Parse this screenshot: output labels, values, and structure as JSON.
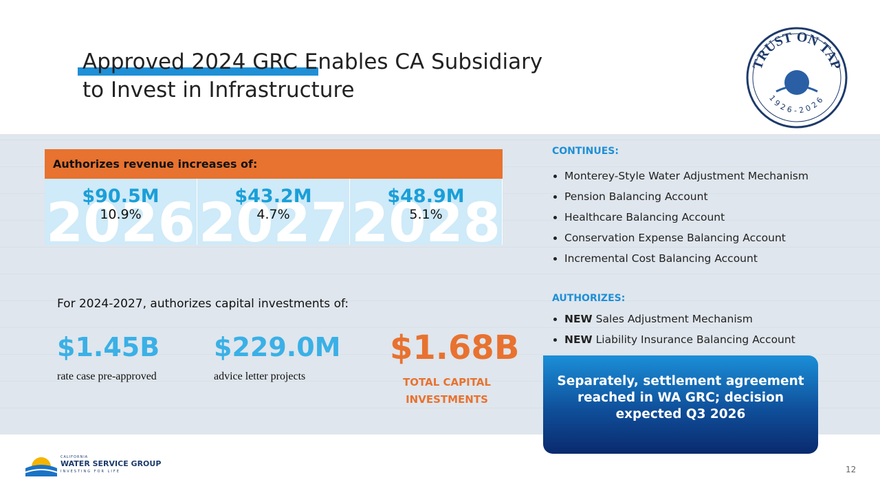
{
  "title": {
    "line1": "Approved 2024 GRC Enables CA Subsidiary",
    "line2": "to Invest in Infrastructure"
  },
  "badge": {
    "text": "TRUST ON TAP",
    "years": "1926-2026"
  },
  "revenue": {
    "header": "Authorizes revenue increases of:",
    "cells": [
      {
        "year": "2026",
        "amount": "$90.5M",
        "pct": "10.9%"
      },
      {
        "year": "2027",
        "amount": "$43.2M",
        "pct": "4.7%"
      },
      {
        "year": "2028",
        "amount": "$48.9M",
        "pct": "5.1%"
      }
    ]
  },
  "capital": {
    "intro": "For 2024-2027, authorizes capital investments of:",
    "items": [
      {
        "amount": "$1.45B",
        "label": "rate case pre-approved"
      },
      {
        "amount": "$229.0M",
        "label": "advice letter projects"
      }
    ],
    "total": {
      "amount": "$1.68B",
      "label": "TOTAL CAPITAL INVESTMENTS"
    }
  },
  "continues": {
    "heading": "CONTINUES:",
    "items": [
      "Monterey-Style Water Adjustment Mechanism",
      "Pension Balancing Account",
      "Healthcare Balancing Account",
      "Conservation Expense Balancing Account",
      "Incremental Cost Balancing Account"
    ]
  },
  "authorizes": {
    "heading": "AUTHORIZES:",
    "items": [
      {
        "bold": "NEW",
        "text": "Sales Adjustment Mechanism"
      },
      {
        "bold": "NEW",
        "text": "Liability Insurance Balancing Account"
      }
    ]
  },
  "callout": "Separately, settlement agreement reached in WA GRC; decision expected Q3 2026",
  "footer": {
    "logo_top": "CALIFORNIA",
    "logo_name": "WATER SERVICE GROUP",
    "logo_tag": "INVESTING FOR LIFE",
    "page": "12"
  }
}
